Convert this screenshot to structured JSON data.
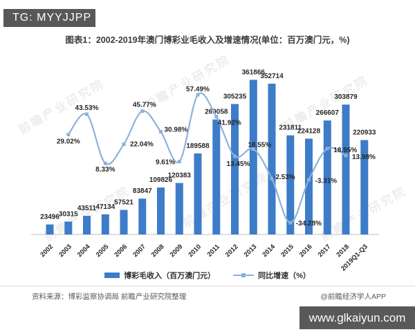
{
  "header": {
    "badge_label": "TG: MYYJJPP"
  },
  "title": "图表1：2002-2019年澳门博彩业毛收入及增速情况(单位：百万澳门元，%)",
  "chart_data": {
    "type": "bar",
    "subtype": "bar+line combo",
    "title": "图表1：2002-2019年澳门博彩业毛收入及增速情况(单位：百万澳门元，%)",
    "categories": [
      "2002",
      "2003",
      "2004",
      "2005",
      "2006",
      "2007",
      "2008",
      "2009",
      "2010",
      "2011",
      "2012",
      "2013",
      "2014",
      "2015",
      "2016",
      "2017",
      "2018",
      "2019Q1-Q3"
    ],
    "series": [
      {
        "name": "博彩毛收入（百万澳门元）",
        "type": "bar",
        "color": "#3d7cc8",
        "values": [
          23496,
          30315,
          43511,
          47134,
          57521,
          83847,
          109826,
          120383,
          189588,
          269058,
          305235,
          361866,
          352714,
          231811,
          224128,
          266607,
          303879,
          220933
        ]
      },
      {
        "name": "同比增速（%）",
        "type": "line",
        "color": "#8cb1da",
        "values": [
          null,
          29.02,
          43.53,
          8.33,
          22.04,
          45.77,
          30.98,
          9.61,
          57.49,
          41.92,
          13.45,
          18.55,
          -2.53,
          -34.28,
          -3.31,
          18.95,
          13.98,
          null
        ]
      }
    ],
    "xlabel": "",
    "ylabel": "",
    "grid": false,
    "legend_position": "bottom",
    "bar_axis_range": [
      0,
      400000
    ],
    "line_axis_range_pct": [
      -45,
      70
    ],
    "data_labels_shown": true
  },
  "watermark": {
    "text": "前瞻产业研究院"
  },
  "footer": {
    "source": "资料来源：博彩监察协调局 前瞻产业研究院整理",
    "credit": "@前瞻经济学人APP",
    "site_badge": "www.glkaiyun.com"
  },
  "colors": {
    "bar": "#3d7cc8",
    "line": "#8cb1da",
    "label_text": "#262626",
    "badge_bg": "#58585a",
    "axis_line": "#cccccc"
  }
}
